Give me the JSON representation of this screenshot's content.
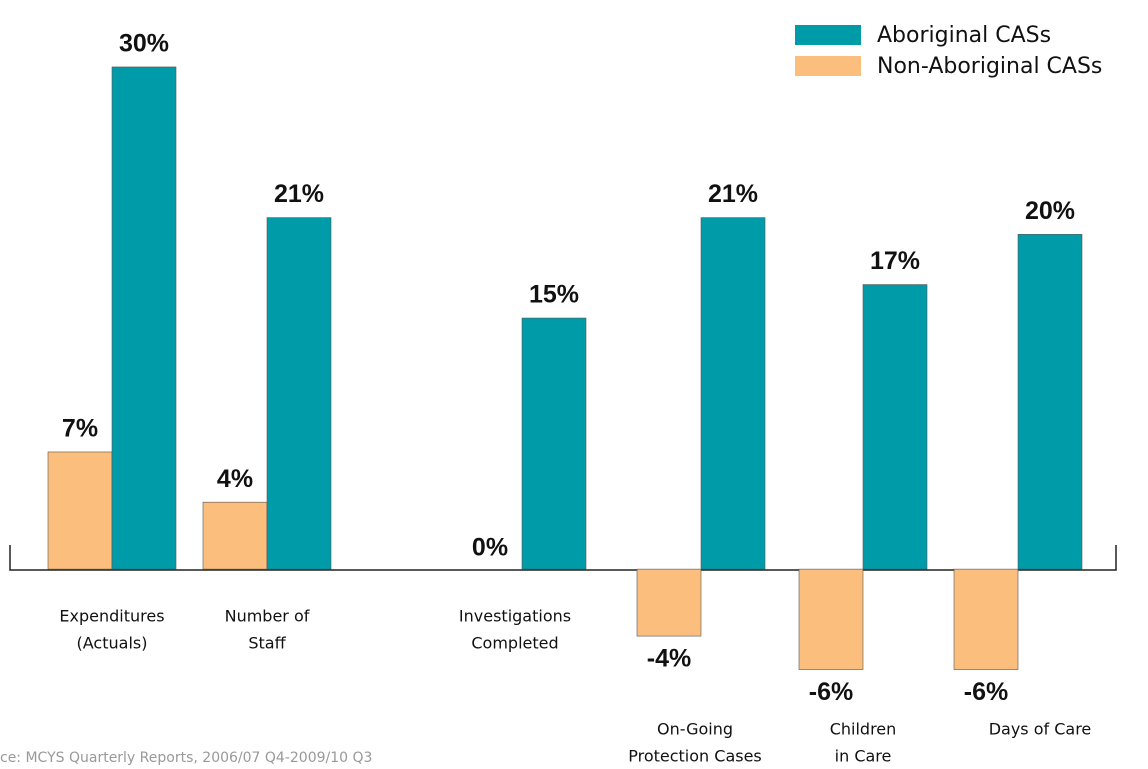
{
  "chart_data": {
    "type": "bar",
    "categories": [
      [
        "Expenditures",
        "(Actuals)"
      ],
      [
        "Number of",
        "Staff"
      ],
      [
        "Investigations",
        "Completed"
      ],
      [
        "On-Going",
        "Protection Cases"
      ],
      [
        "Children",
        "in Care"
      ],
      [
        "Days of Care"
      ]
    ],
    "series": [
      {
        "name": "Non-Aboriginal CASs",
        "color": "#fbbe7d",
        "values": [
          7,
          4,
          0,
          -4,
          -6,
          -6
        ],
        "value_labels": [
          "7%",
          "4%",
          "0%",
          "-4%",
          "-6%",
          "-6%"
        ]
      },
      {
        "name": "Aboriginal CASs",
        "color": "#009ba8",
        "values": [
          30,
          21,
          15,
          21,
          17,
          20
        ],
        "value_labels": [
          "30%",
          "21%",
          "15%",
          "21%",
          "17%",
          "20%"
        ]
      }
    ],
    "ylim": [
      -12,
      34
    ],
    "source": "ce: MCYS Quarterly Reports, 2006/07 Q4-2009/10 Q3"
  }
}
